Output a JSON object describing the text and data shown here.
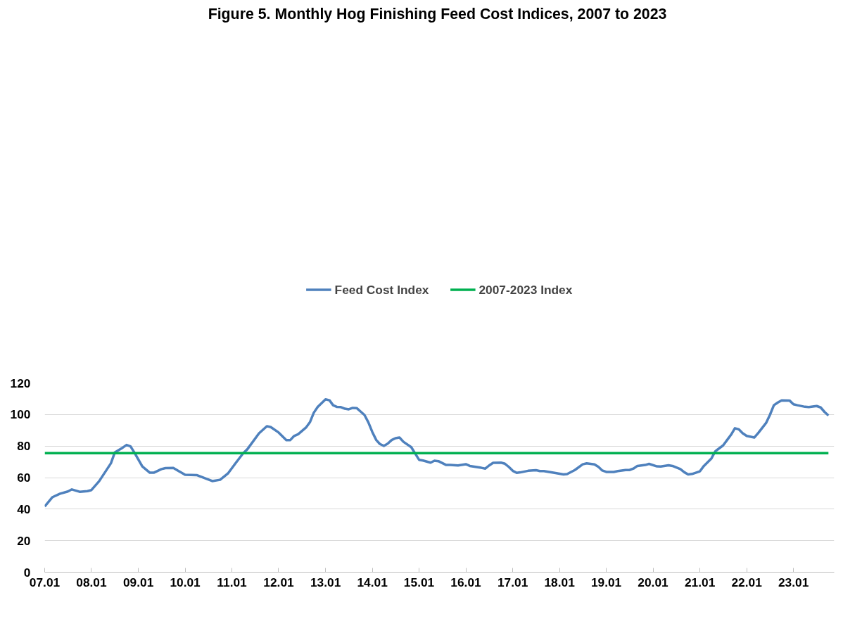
{
  "chart_data": {
    "type": "line",
    "title": "Figure 5.  Monthly Hog Finishing Feed Cost Indices, 2007 to 2023",
    "series": [
      {
        "name": "Feed Cost Index",
        "color": "#4f81bd",
        "x": [
          "2007-01",
          "2007-03",
          "2007-05",
          "2007-07",
          "2007-08",
          "2007-10",
          "2007-12",
          "2008-01",
          "2008-03",
          "2008-06",
          "2008-07",
          "2008-09",
          "2008-10",
          "2008-11",
          "2008-12",
          "2009-02",
          "2009-04",
          "2009-05",
          "2009-07",
          "2009-08",
          "2009-10",
          "2010-01",
          "2010-04",
          "2010-08",
          "2010-10",
          "2010-12",
          "2011-02",
          "2011-04",
          "2011-05",
          "2011-08",
          "2011-10",
          "2011-11",
          "2012-01",
          "2012-03",
          "2012-04",
          "2012-05",
          "2012-06",
          "2012-08",
          "2012-09",
          "2012-10",
          "2012-11",
          "2013-01",
          "2013-02",
          "2013-03",
          "2013-04",
          "2013-05",
          "2013-06",
          "2013-07",
          "2013-08",
          "2013-09",
          "2013-10",
          "2013-11",
          "2013-12",
          "2014-01",
          "2014-02",
          "2014-03",
          "2014-04",
          "2014-05",
          "2014-06",
          "2014-07",
          "2014-08",
          "2014-09",
          "2014-11",
          "2014-12",
          "2015-01",
          "2015-02",
          "2015-04",
          "2015-05",
          "2015-06",
          "2015-08",
          "2015-09",
          "2015-11",
          "2016-01",
          "2016-02",
          "2016-05",
          "2016-06",
          "2016-07",
          "2016-08",
          "2016-10",
          "2016-11",
          "2016-12",
          "2017-01",
          "2017-02",
          "2017-03",
          "2017-05",
          "2017-07",
          "2017-08",
          "2017-09",
          "2017-12",
          "2018-02",
          "2018-03",
          "2018-05",
          "2018-07",
          "2018-08",
          "2018-10",
          "2018-11",
          "2018-12",
          "2019-01",
          "2019-03",
          "2019-04",
          "2019-06",
          "2019-07",
          "2019-08",
          "2019-09",
          "2019-11",
          "2019-12",
          "2020-02",
          "2020-03",
          "2020-05",
          "2020-06",
          "2020-08",
          "2020-09",
          "2020-10",
          "2020-11",
          "2021-01",
          "2021-02",
          "2021-04",
          "2021-05",
          "2021-07",
          "2021-08",
          "2021-09",
          "2021-10",
          "2021-11",
          "2021-12",
          "2022-01",
          "2022-03",
          "2022-04",
          "2022-06",
          "2022-07",
          "2022-08",
          "2022-09",
          "2022-10",
          "2022-12",
          "2023-01",
          "2023-02",
          "2023-04",
          "2023-05",
          "2023-07",
          "2023-08",
          "2023-09",
          "2023-10"
        ],
        "values": [
          41.7,
          47.5,
          49.8,
          51.2,
          52.5,
          51.0,
          51.4,
          52.1,
          57.7,
          69.1,
          75.9,
          79.0,
          80.7,
          79.8,
          75.9,
          67.1,
          63.1,
          63.1,
          65.4,
          66.0,
          66.1,
          61.8,
          61.6,
          57.8,
          58.6,
          62.6,
          69.4,
          75.6,
          77.9,
          88.1,
          92.6,
          92.0,
          88.6,
          83.8,
          83.8,
          86.4,
          87.5,
          91.7,
          95.1,
          101.1,
          104.8,
          109.6,
          109.0,
          105.9,
          104.8,
          104.7,
          103.7,
          103.3,
          104.2,
          104.1,
          101.9,
          99.7,
          95.1,
          88.9,
          83.8,
          81.3,
          80.1,
          81.5,
          83.8,
          85.0,
          85.4,
          82.7,
          79.3,
          75.3,
          71.3,
          70.8,
          69.5,
          70.7,
          70.4,
          68.0,
          68.0,
          67.7,
          68.5,
          67.4,
          66.2,
          65.7,
          67.7,
          69.4,
          69.5,
          68.8,
          66.8,
          64.3,
          63.0,
          63.3,
          64.3,
          64.7,
          64.1,
          64.1,
          62.9,
          62.0,
          62.2,
          64.8,
          68.4,
          69.0,
          68.4,
          66.8,
          64.5,
          63.6,
          63.6,
          64.1,
          64.8,
          64.8,
          65.7,
          67.4,
          68.0,
          68.7,
          67.1,
          67.0,
          67.8,
          67.4,
          65.4,
          63.4,
          62.0,
          62.3,
          64.0,
          67.4,
          72.2,
          76.7,
          80.4,
          83.8,
          87.2,
          91.3,
          90.6,
          88.1,
          86.4,
          85.4,
          88.3,
          94.6,
          99.7,
          105.9,
          107.6,
          109.0,
          108.9,
          106.5,
          105.9,
          104.9,
          104.7,
          105.4,
          104.5,
          101.6,
          99.4
        ]
      },
      {
        "name": "2007-2023 Index",
        "color": "#00b050",
        "x": [
          "2007-01",
          "2023-10"
        ],
        "values": [
          75.5,
          75.5
        ]
      }
    ],
    "xlim": [
      "2007-01",
      "2023-11-15"
    ],
    "xticks": [
      {
        "value": "2007-01",
        "label": "07.01"
      },
      {
        "value": "2008-01",
        "label": "08.01"
      },
      {
        "value": "2009-01",
        "label": "09.01"
      },
      {
        "value": "2010-01",
        "label": "10.01"
      },
      {
        "value": "2011-01",
        "label": "11.01"
      },
      {
        "value": "2012-01",
        "label": "12.01"
      },
      {
        "value": "2013-01",
        "label": "13.01"
      },
      {
        "value": "2014-01",
        "label": "14.01"
      },
      {
        "value": "2015-01",
        "label": "15.01"
      },
      {
        "value": "2016-01",
        "label": "16.01"
      },
      {
        "value": "2017-01",
        "label": "17.01"
      },
      {
        "value": "2018-01",
        "label": "18.01"
      },
      {
        "value": "2019-01",
        "label": "19.01"
      },
      {
        "value": "2020-01",
        "label": "20.01"
      },
      {
        "value": "2021-01",
        "label": "21.01"
      },
      {
        "value": "2022-01",
        "label": "22.01"
      },
      {
        "value": "2023-01",
        "label": "23.01"
      }
    ],
    "ylim": [
      0,
      120
    ],
    "yticks": [
      0,
      20,
      40,
      60,
      80,
      100,
      120
    ],
    "grid": "y",
    "legend": "top",
    "line_style": "solid"
  }
}
